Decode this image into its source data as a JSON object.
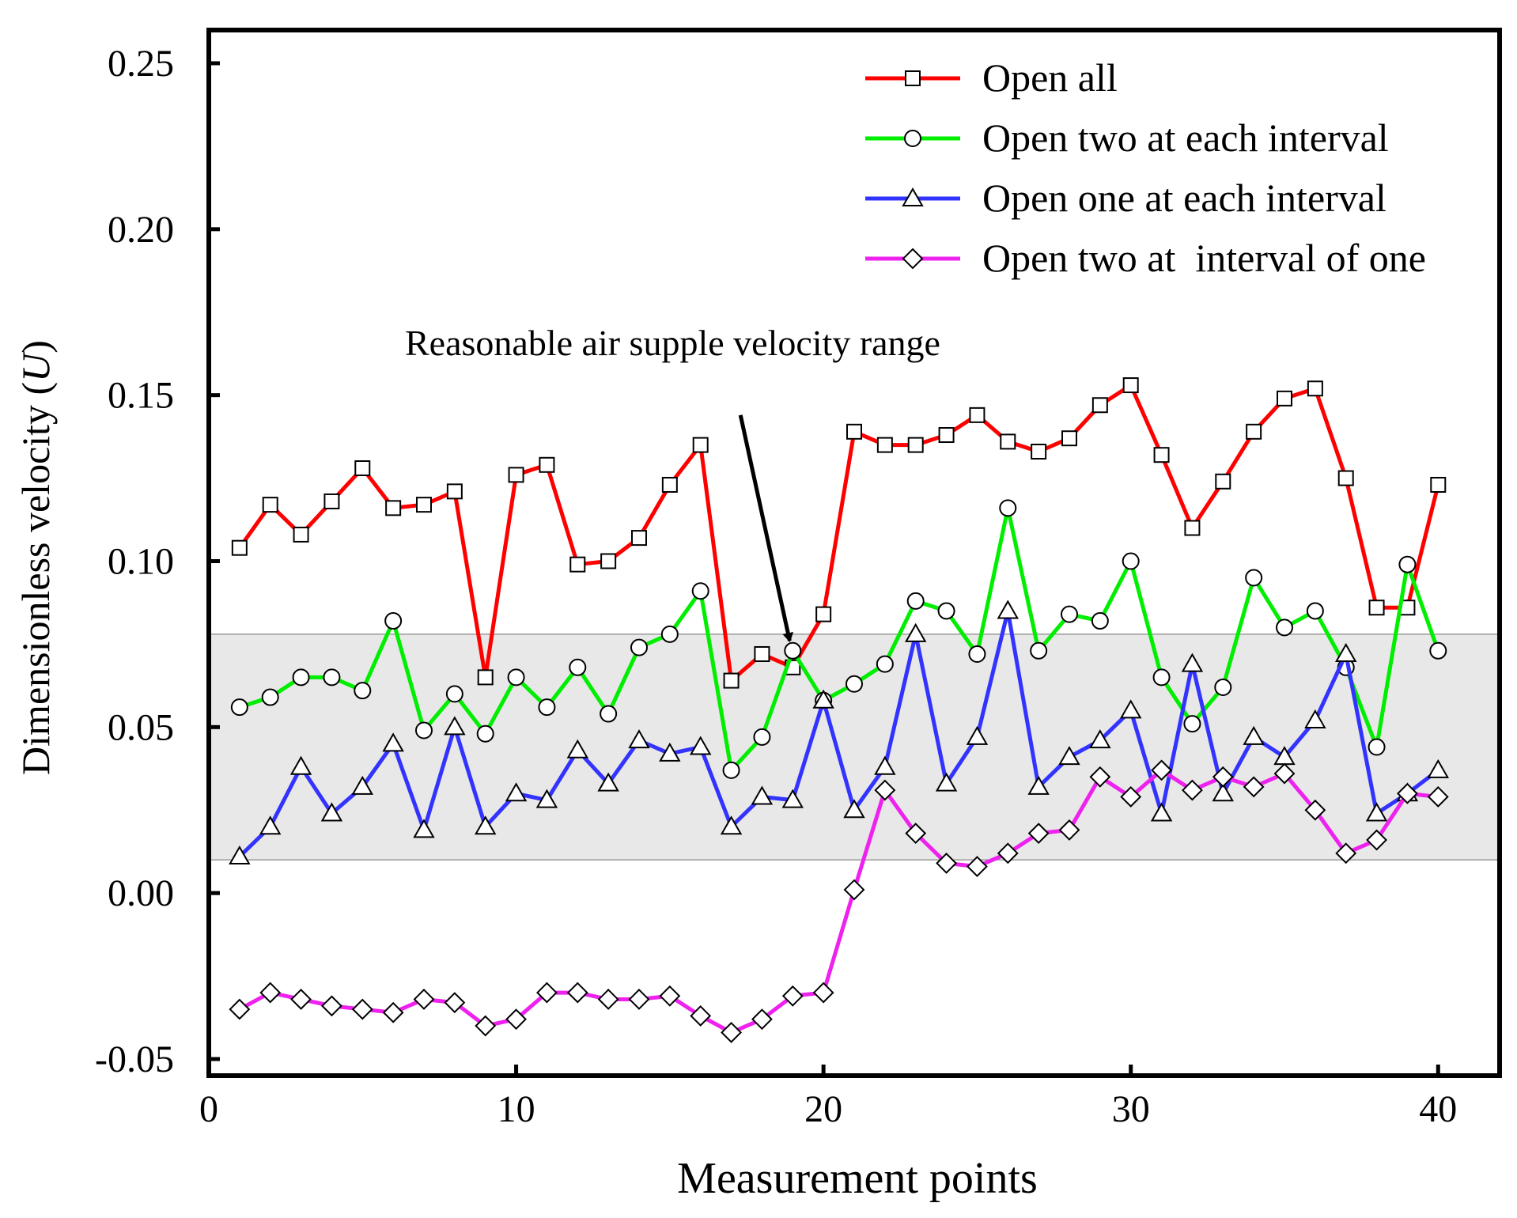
{
  "chart_data": {
    "type": "line",
    "xlabel": "Measurement points",
    "ylabel_main": "Dimensionless velocity (",
    "ylabel_symbol": "U",
    "ylabel_close": ")",
    "xlim": [
      0,
      42
    ],
    "ylim": [
      -0.055,
      0.26
    ],
    "x_ticks": [
      0,
      10,
      20,
      30,
      40
    ],
    "x_tick_labels": [
      "0",
      "10",
      "20",
      "30",
      "40"
    ],
    "y_ticks": [
      -0.05,
      0.0,
      0.05,
      0.1,
      0.15,
      0.2,
      0.25
    ],
    "y_tick_labels": [
      "-0.05",
      "0.00",
      "0.05",
      "0.10",
      "0.15",
      "0.20",
      "0.25"
    ],
    "band": {
      "from": 0.01,
      "to": 0.078,
      "color": "#e8e8e8"
    },
    "annotation": {
      "text": "Reasonable air supple velocity range",
      "arrow_from": [
        17.3,
        0.144
      ],
      "arrow_to": [
        18.9,
        0.076
      ]
    },
    "legend_position": "top-right",
    "x": [
      1,
      2,
      3,
      4,
      5,
      6,
      7,
      8,
      9,
      10,
      11,
      12,
      13,
      14,
      15,
      16,
      17,
      18,
      19,
      20,
      21,
      22,
      23,
      24,
      25,
      26,
      27,
      28,
      29,
      30,
      31,
      32,
      33,
      34,
      35,
      36,
      37,
      38,
      39,
      40
    ],
    "series": [
      {
        "name": "Open all",
        "color": "#ff0000",
        "marker": "square",
        "values": [
          0.104,
          0.117,
          0.108,
          0.118,
          0.128,
          0.116,
          0.117,
          0.121,
          0.065,
          0.126,
          0.129,
          0.099,
          0.1,
          0.107,
          0.123,
          0.135,
          0.064,
          0.072,
          0.068,
          0.084,
          0.139,
          0.135,
          0.135,
          0.138,
          0.144,
          0.136,
          0.133,
          0.137,
          0.147,
          0.153,
          0.132,
          0.11,
          0.124,
          0.139,
          0.149,
          0.152,
          0.125,
          0.086,
          0.086,
          0.123
        ]
      },
      {
        "name": "Open two at each interval",
        "color": "#00ee00",
        "marker": "circle",
        "values": [
          0.056,
          0.059,
          0.065,
          0.065,
          0.061,
          0.082,
          0.049,
          0.06,
          0.048,
          0.065,
          0.056,
          0.068,
          0.054,
          0.074,
          0.078,
          0.091,
          0.037,
          0.047,
          0.073,
          0.058,
          0.063,
          0.069,
          0.088,
          0.085,
          0.072,
          0.116,
          0.073,
          0.084,
          0.082,
          0.1,
          0.065,
          0.051,
          0.062,
          0.095,
          0.08,
          0.085,
          0.068,
          0.044,
          0.099,
          0.073
        ]
      },
      {
        "name": "Open one at each interval",
        "color": "#3333ff",
        "marker": "triangle",
        "values": [
          0.011,
          0.02,
          0.038,
          0.024,
          0.032,
          0.045,
          0.019,
          0.05,
          0.02,
          0.03,
          0.028,
          0.043,
          0.033,
          0.046,
          0.042,
          0.044,
          0.02,
          0.029,
          0.028,
          0.058,
          0.025,
          0.038,
          0.078,
          0.033,
          0.047,
          0.085,
          0.032,
          0.041,
          0.046,
          0.055,
          0.024,
          0.069,
          0.03,
          0.047,
          0.041,
          0.052,
          0.072,
          0.024,
          0.03,
          0.037
        ]
      },
      {
        "name": "Open two at  interval of one",
        "color": "#ee22ee",
        "marker": "diamond",
        "values": [
          -0.035,
          -0.03,
          -0.032,
          -0.034,
          -0.035,
          -0.036,
          -0.032,
          -0.033,
          -0.04,
          -0.038,
          -0.03,
          -0.03,
          -0.032,
          -0.032,
          -0.031,
          -0.037,
          -0.042,
          -0.038,
          -0.031,
          -0.03,
          0.001,
          0.031,
          0.018,
          0.009,
          0.008,
          0.012,
          0.018,
          0.019,
          0.035,
          0.029,
          0.037,
          0.031,
          0.035,
          0.032,
          0.036,
          0.025,
          0.012,
          0.016,
          0.03,
          0.029
        ]
      }
    ]
  }
}
